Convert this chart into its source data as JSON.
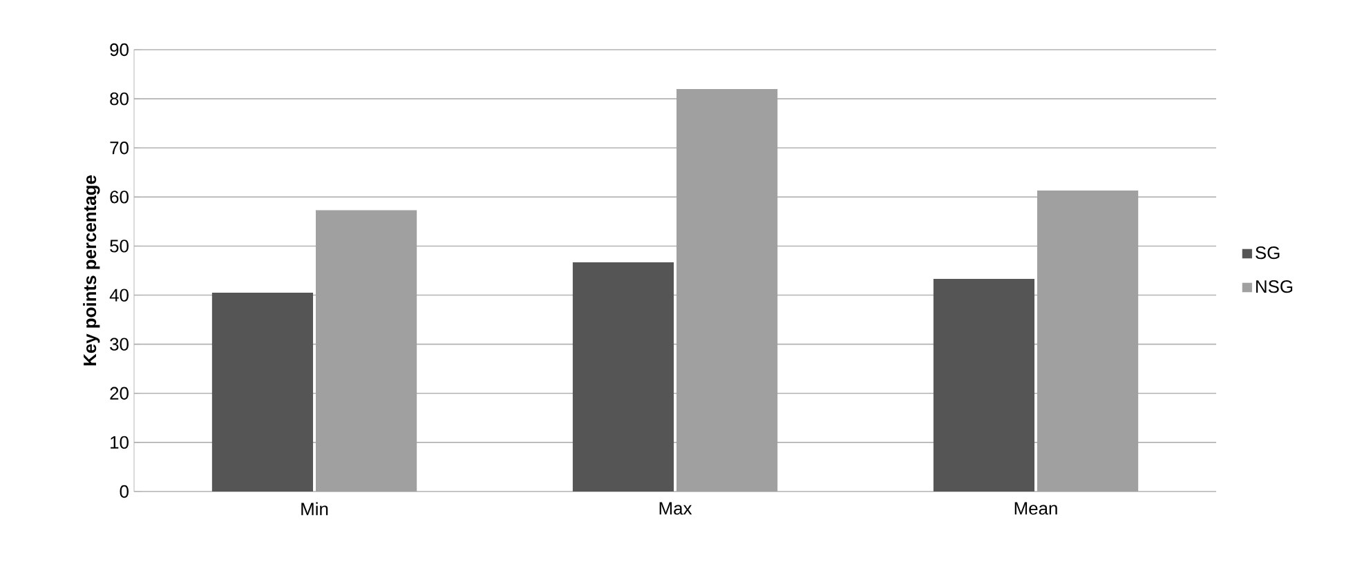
{
  "chart_data": {
    "type": "bar",
    "ylabel": "Key  points percentage",
    "categories": [
      "Min",
      "Max",
      "Mean"
    ],
    "series": [
      {
        "name": "SG",
        "color": "#555555",
        "values": [
          40.5,
          46.7,
          43.3
        ]
      },
      {
        "name": "NSG",
        "color": "#a0a0a0",
        "values": [
          57.3,
          82,
          61.3
        ]
      }
    ],
    "ylim": [
      0,
      90
    ],
    "yticks": [
      0,
      10,
      20,
      30,
      40,
      50,
      60,
      70,
      80,
      90
    ],
    "grid": "y",
    "legend": "right"
  }
}
